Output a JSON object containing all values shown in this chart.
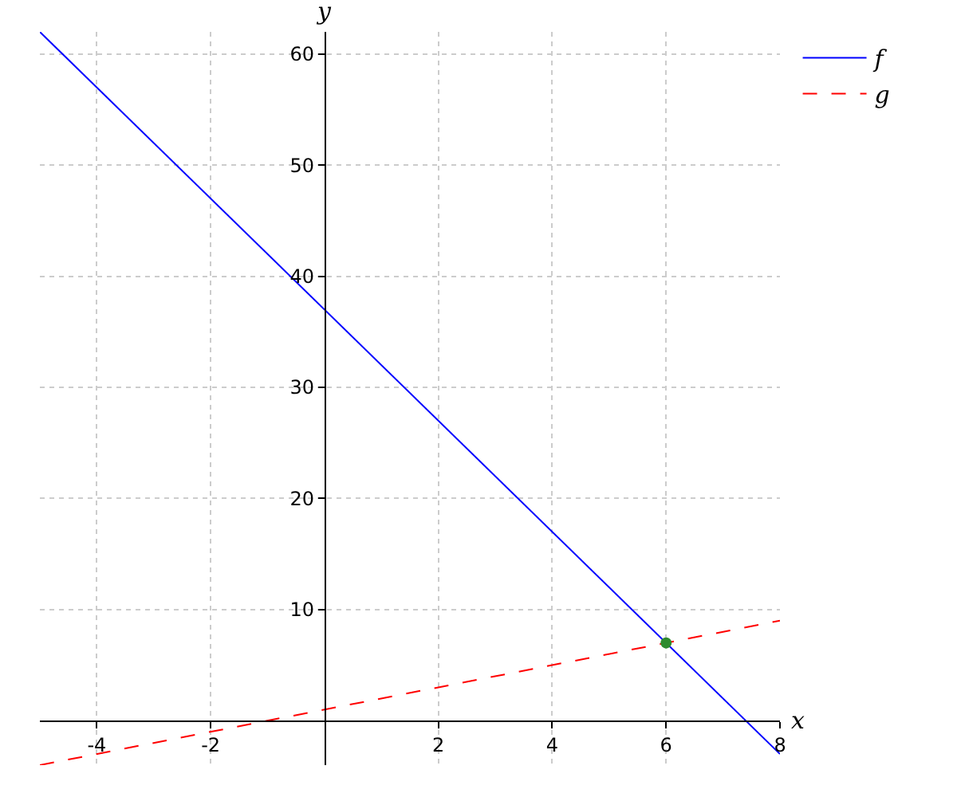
{
  "chart_data": {
    "type": "line",
    "xlabel": "x",
    "ylabel": "y",
    "xlim": [
      -5,
      8
    ],
    "ylim": [
      -4,
      62
    ],
    "xticks": [
      -4,
      -2,
      2,
      4,
      6,
      8
    ],
    "yticks": [
      10,
      20,
      30,
      40,
      50,
      60
    ],
    "grid": true,
    "legend": "top right",
    "series": [
      {
        "name": "f",
        "color": "#0000ff",
        "line_style": "solid",
        "x": [
          -5,
          8
        ],
        "values": [
          62,
          -3
        ]
      },
      {
        "name": "g",
        "color": "#ff0000",
        "line_style": "dashed",
        "x": [
          -5,
          8
        ],
        "values": [
          -4,
          9
        ]
      },
      {
        "type": "scatter",
        "color": "#2e8b2e",
        "marker": "circle",
        "x": [
          6
        ],
        "values": [
          7
        ]
      }
    ]
  }
}
